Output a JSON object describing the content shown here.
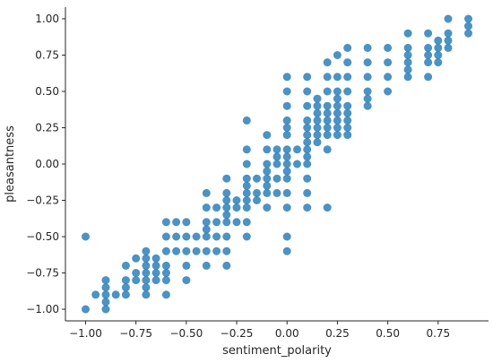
{
  "chart_data": {
    "type": "scatter",
    "title": "",
    "xlabel": "sentiment_polarity",
    "ylabel": "pleasantness",
    "xlim": [
      -1.1,
      1.0
    ],
    "ylim": [
      -1.08,
      1.08
    ],
    "x_ticks": [
      -1.0,
      -0.75,
      -0.5,
      -0.25,
      0.0,
      0.25,
      0.5,
      0.75
    ],
    "x_tick_labels": [
      "−1.00",
      "−0.75",
      "−0.50",
      "−0.25",
      "0.00",
      "0.25",
      "0.50",
      "0.75"
    ],
    "y_ticks": [
      -1.0,
      -0.75,
      -0.5,
      -0.25,
      0.0,
      0.25,
      0.5,
      0.75,
      1.0
    ],
    "y_tick_labels": [
      "−1.00",
      "−0.75",
      "−0.50",
      "−0.25",
      "0.00",
      "0.25",
      "0.50",
      "0.75",
      "1.00"
    ],
    "grid": false,
    "legend": "none",
    "marker_color": "#1f77b4",
    "marker_opacity": 0.8,
    "points": [
      [
        -1.0,
        -1.0
      ],
      [
        -1.0,
        -0.5
      ],
      [
        -0.95,
        -0.9
      ],
      [
        -0.9,
        -1.0
      ],
      [
        -0.9,
        -0.95
      ],
      [
        -0.9,
        -0.9
      ],
      [
        -0.9,
        -0.85
      ],
      [
        -0.9,
        -0.8
      ],
      [
        -0.85,
        -0.9
      ],
      [
        -0.8,
        -0.9
      ],
      [
        -0.8,
        -0.8
      ],
      [
        -0.8,
        -0.7
      ],
      [
        -0.8,
        -0.85
      ],
      [
        -0.75,
        -0.8
      ],
      [
        -0.75,
        -0.75
      ],
      [
        -0.75,
        -0.65
      ],
      [
        -0.7,
        -0.9
      ],
      [
        -0.7,
        -0.85
      ],
      [
        -0.7,
        -0.8
      ],
      [
        -0.7,
        -0.75
      ],
      [
        -0.7,
        -0.7
      ],
      [
        -0.7,
        -0.65
      ],
      [
        -0.7,
        -0.6
      ],
      [
        -0.65,
        -0.8
      ],
      [
        -0.65,
        -0.75
      ],
      [
        -0.65,
        -0.7
      ],
      [
        -0.65,
        -0.65
      ],
      [
        -0.6,
        -0.9
      ],
      [
        -0.6,
        -0.8
      ],
      [
        -0.6,
        -0.75
      ],
      [
        -0.6,
        -0.7
      ],
      [
        -0.6,
        -0.6
      ],
      [
        -0.6,
        -0.5
      ],
      [
        -0.6,
        -0.4
      ],
      [
        -0.55,
        -0.6
      ],
      [
        -0.55,
        -0.5
      ],
      [
        -0.55,
        -0.4
      ],
      [
        -0.5,
        -0.8
      ],
      [
        -0.5,
        -0.7
      ],
      [
        -0.5,
        -0.6
      ],
      [
        -0.5,
        -0.5
      ],
      [
        -0.5,
        -0.4
      ],
      [
        -0.45,
        -0.6
      ],
      [
        -0.45,
        -0.5
      ],
      [
        -0.4,
        -0.7
      ],
      [
        -0.4,
        -0.6
      ],
      [
        -0.4,
        -0.5
      ],
      [
        -0.4,
        -0.45
      ],
      [
        -0.4,
        -0.4
      ],
      [
        -0.4,
        -0.3
      ],
      [
        -0.4,
        -0.2
      ],
      [
        -0.35,
        -0.6
      ],
      [
        -0.35,
        -0.5
      ],
      [
        -0.35,
        -0.4
      ],
      [
        -0.35,
        -0.3
      ],
      [
        -0.3,
        -0.7
      ],
      [
        -0.3,
        -0.6
      ],
      [
        -0.3,
        -0.5
      ],
      [
        -0.3,
        -0.4
      ],
      [
        -0.3,
        -0.35
      ],
      [
        -0.3,
        -0.3
      ],
      [
        -0.3,
        -0.25
      ],
      [
        -0.3,
        -0.2
      ],
      [
        -0.3,
        -0.1
      ],
      [
        -0.25,
        -0.4
      ],
      [
        -0.25,
        -0.3
      ],
      [
        -0.25,
        -0.25
      ],
      [
        -0.2,
        -0.5
      ],
      [
        -0.2,
        -0.4
      ],
      [
        -0.2,
        -0.3
      ],
      [
        -0.2,
        -0.25
      ],
      [
        -0.2,
        -0.2
      ],
      [
        -0.2,
        -0.15
      ],
      [
        -0.2,
        -0.1
      ],
      [
        -0.2,
        0.0
      ],
      [
        -0.2,
        0.1
      ],
      [
        -0.2,
        0.3
      ],
      [
        -0.15,
        -0.25
      ],
      [
        -0.15,
        -0.2
      ],
      [
        -0.15,
        -0.1
      ],
      [
        -0.1,
        -0.3
      ],
      [
        -0.1,
        -0.2
      ],
      [
        -0.1,
        -0.15
      ],
      [
        -0.1,
        -0.1
      ],
      [
        -0.1,
        -0.05
      ],
      [
        -0.1,
        0.0
      ],
      [
        -0.1,
        0.1
      ],
      [
        -0.1,
        0.2
      ],
      [
        -0.05,
        -0.2
      ],
      [
        -0.05,
        -0.1
      ],
      [
        -0.05,
        0.0
      ],
      [
        -0.05,
        0.05
      ],
      [
        -0.05,
        0.1
      ],
      [
        0.0,
        -0.6
      ],
      [
        0.0,
        -0.5
      ],
      [
        0.0,
        -0.3
      ],
      [
        0.0,
        -0.2
      ],
      [
        0.0,
        -0.1
      ],
      [
        0.0,
        -0.05
      ],
      [
        0.0,
        0.0
      ],
      [
        0.0,
        0.05
      ],
      [
        0.0,
        0.1
      ],
      [
        0.0,
        0.2
      ],
      [
        0.0,
        0.25
      ],
      [
        0.0,
        0.3
      ],
      [
        0.0,
        0.4
      ],
      [
        0.0,
        0.5
      ],
      [
        0.0,
        0.6
      ],
      [
        0.05,
        0.0
      ],
      [
        0.05,
        0.1
      ],
      [
        0.1,
        -0.3
      ],
      [
        0.1,
        -0.2
      ],
      [
        0.1,
        -0.1
      ],
      [
        0.1,
        0.0
      ],
      [
        0.1,
        0.05
      ],
      [
        0.1,
        0.1
      ],
      [
        0.1,
        0.15
      ],
      [
        0.1,
        0.2
      ],
      [
        0.1,
        0.25
      ],
      [
        0.1,
        0.3
      ],
      [
        0.1,
        0.4
      ],
      [
        0.1,
        0.5
      ],
      [
        0.1,
        0.6
      ],
      [
        0.15,
        0.15
      ],
      [
        0.15,
        0.2
      ],
      [
        0.15,
        0.25
      ],
      [
        0.15,
        0.3
      ],
      [
        0.15,
        0.35
      ],
      [
        0.15,
        0.4
      ],
      [
        0.15,
        0.45
      ],
      [
        0.2,
        -0.3
      ],
      [
        0.2,
        0.1
      ],
      [
        0.2,
        0.2
      ],
      [
        0.2,
        0.25
      ],
      [
        0.2,
        0.3
      ],
      [
        0.2,
        0.35
      ],
      [
        0.2,
        0.4
      ],
      [
        0.2,
        0.5
      ],
      [
        0.2,
        0.6
      ],
      [
        0.2,
        0.7
      ],
      [
        0.25,
        0.2
      ],
      [
        0.25,
        0.25
      ],
      [
        0.25,
        0.3
      ],
      [
        0.25,
        0.35
      ],
      [
        0.25,
        0.4
      ],
      [
        0.25,
        0.45
      ],
      [
        0.25,
        0.5
      ],
      [
        0.25,
        0.6
      ],
      [
        0.25,
        0.75
      ],
      [
        0.3,
        0.2
      ],
      [
        0.3,
        0.25
      ],
      [
        0.3,
        0.3
      ],
      [
        0.3,
        0.35
      ],
      [
        0.3,
        0.4
      ],
      [
        0.3,
        0.5
      ],
      [
        0.3,
        0.6
      ],
      [
        0.3,
        0.7
      ],
      [
        0.3,
        0.8
      ],
      [
        0.4,
        0.4
      ],
      [
        0.4,
        0.45
      ],
      [
        0.4,
        0.5
      ],
      [
        0.4,
        0.6
      ],
      [
        0.4,
        0.7
      ],
      [
        0.4,
        0.8
      ],
      [
        0.5,
        0.5
      ],
      [
        0.5,
        0.6
      ],
      [
        0.5,
        0.7
      ],
      [
        0.5,
        0.8
      ],
      [
        0.6,
        0.6
      ],
      [
        0.6,
        0.65
      ],
      [
        0.6,
        0.7
      ],
      [
        0.6,
        0.75
      ],
      [
        0.6,
        0.8
      ],
      [
        0.6,
        0.9
      ],
      [
        0.7,
        0.6
      ],
      [
        0.7,
        0.7
      ],
      [
        0.7,
        0.75
      ],
      [
        0.7,
        0.8
      ],
      [
        0.7,
        0.9
      ],
      [
        0.75,
        0.7
      ],
      [
        0.75,
        0.75
      ],
      [
        0.75,
        0.8
      ],
      [
        0.75,
        0.85
      ],
      [
        0.8,
        0.8
      ],
      [
        0.8,
        0.85
      ],
      [
        0.8,
        0.9
      ],
      [
        0.8,
        1.0
      ],
      [
        0.9,
        0.9
      ],
      [
        0.9,
        0.95
      ],
      [
        0.9,
        1.0
      ]
    ]
  }
}
